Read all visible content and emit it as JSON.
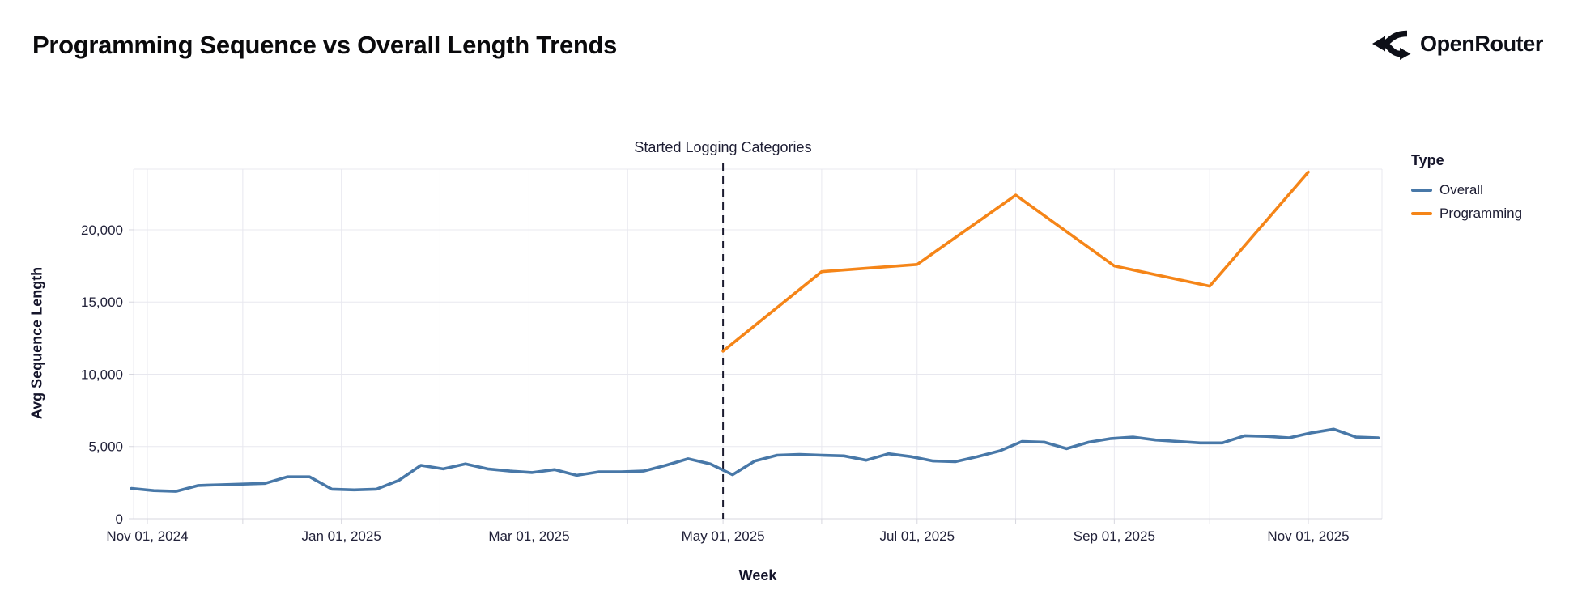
{
  "header": {
    "title": "Programming Sequence vs Overall Length Trends",
    "brand": "OpenRouter"
  },
  "chart_data": {
    "type": "line",
    "title": "Programming Sequence vs Overall Length Trends",
    "xlabel": "Week",
    "ylabel": "Avg Sequence Length",
    "ylim": [
      0,
      24200
    ],
    "grid": true,
    "background": "#ffffff",
    "legend": {
      "title": "Type",
      "position": "right"
    },
    "annotation": {
      "label": "Started Logging Categories",
      "date": "2025-05-01"
    },
    "x_ticks": [
      {
        "date": "2024-11-01",
        "label": "Nov 01, 2024"
      },
      {
        "date": "2025-01-01",
        "label": "Jan 01, 2025"
      },
      {
        "date": "2025-03-01",
        "label": "Mar 01, 2025"
      },
      {
        "date": "2025-05-01",
        "label": "May 01, 2025"
      },
      {
        "date": "2025-07-01",
        "label": "Jul 01, 2025"
      },
      {
        "date": "2025-09-01",
        "label": "Sep 01, 2025"
      },
      {
        "date": "2025-11-01",
        "label": "Nov 01, 2025"
      }
    ],
    "x_gridline_dates": [
      "2024-11-01",
      "2024-12-01",
      "2025-01-01",
      "2025-02-01",
      "2025-03-01",
      "2025-04-01",
      "2025-05-01",
      "2025-06-01",
      "2025-07-01",
      "2025-08-01",
      "2025-09-01",
      "2025-10-01",
      "2025-11-01"
    ],
    "y_ticks": [
      {
        "value": 0,
        "label": "0"
      },
      {
        "value": 5000,
        "label": "5,000"
      },
      {
        "value": 10000,
        "label": "10,000"
      },
      {
        "value": 15000,
        "label": "15,000"
      },
      {
        "value": 20000,
        "label": "20,000"
      }
    ],
    "series": [
      {
        "name": "Overall",
        "color": "#4878a8",
        "dates": [
          "2024-10-27",
          "2024-11-03",
          "2024-11-10",
          "2024-11-17",
          "2024-11-24",
          "2024-12-01",
          "2024-12-08",
          "2024-12-15",
          "2024-12-22",
          "2024-12-29",
          "2025-01-05",
          "2025-01-12",
          "2025-01-19",
          "2025-01-26",
          "2025-02-02",
          "2025-02-09",
          "2025-02-16",
          "2025-02-23",
          "2025-03-02",
          "2025-03-09",
          "2025-03-16",
          "2025-03-23",
          "2025-03-30",
          "2025-04-06",
          "2025-04-13",
          "2025-04-20",
          "2025-04-27",
          "2025-05-04",
          "2025-05-11",
          "2025-05-18",
          "2025-05-25",
          "2025-06-01",
          "2025-06-08",
          "2025-06-15",
          "2025-06-22",
          "2025-06-29",
          "2025-07-06",
          "2025-07-13",
          "2025-07-20",
          "2025-07-27",
          "2025-08-03",
          "2025-08-10",
          "2025-08-17",
          "2025-08-24",
          "2025-08-31",
          "2025-09-07",
          "2025-09-14",
          "2025-09-21",
          "2025-09-28",
          "2025-10-05",
          "2025-10-12",
          "2025-10-19",
          "2025-10-26",
          "2025-11-02",
          "2025-11-09",
          "2025-11-16",
          "2025-11-23"
        ],
        "values": [
          2100,
          1950,
          1900,
          2300,
          2350,
          2400,
          2450,
          2900,
          2900,
          2050,
          2000,
          2050,
          2650,
          3700,
          3450,
          3800,
          3450,
          3300,
          3200,
          3400,
          3000,
          3250,
          3250,
          3300,
          3700,
          4150,
          3800,
          3050,
          4000,
          4400,
          4450,
          4400,
          4350,
          4050,
          4500,
          4300,
          4000,
          3950,
          4300,
          4700,
          5350,
          5300,
          4850,
          5300,
          5550,
          5650,
          5450,
          5350,
          5250,
          5250,
          5750,
          5700,
          5600,
          5950,
          6200,
          5650,
          5600
        ]
      },
      {
        "name": "Programming",
        "color": "#f58518",
        "dates": [
          "2025-05-01",
          "2025-06-01",
          "2025-07-01",
          "2025-08-01",
          "2025-09-01",
          "2025-10-01",
          "2025-11-01"
        ],
        "values": [
          11600,
          17100,
          17600,
          22400,
          17500,
          16100,
          24000
        ]
      }
    ]
  }
}
